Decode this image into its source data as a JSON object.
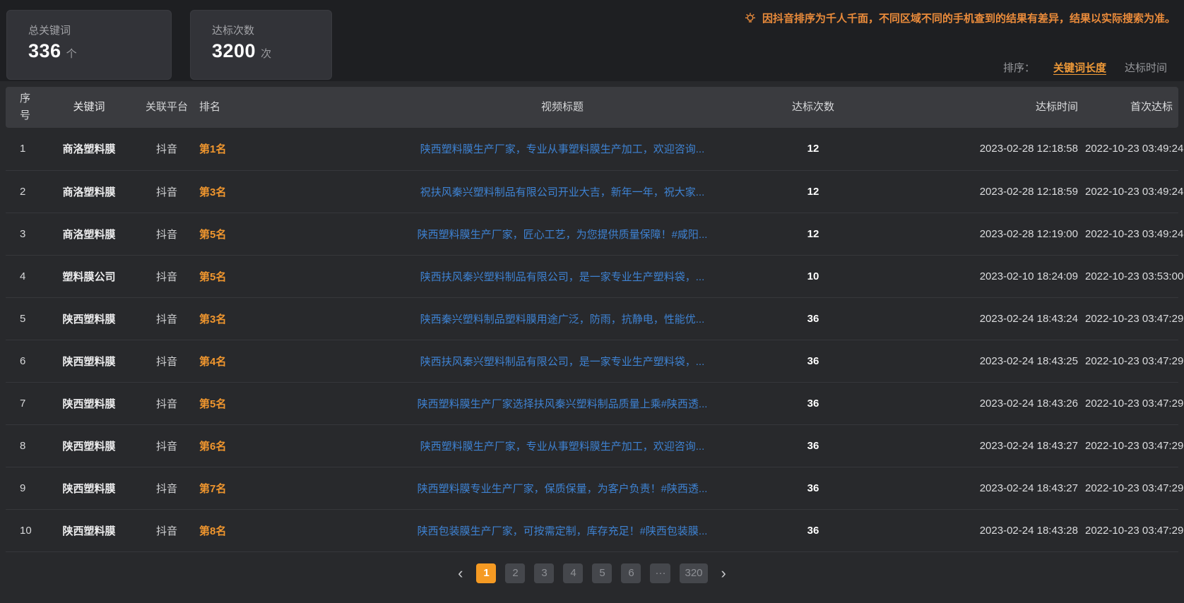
{
  "stats": [
    {
      "label": "总关键词",
      "value": "336",
      "unit": "个"
    },
    {
      "label": "达标次数",
      "value": "3200",
      "unit": "次"
    }
  ],
  "notice": {
    "icon": "bulb-icon",
    "text": "因抖音排序为千人千面，不同区域不同的手机查到的结果有差异，结果以实际搜索为准。",
    "color": "#ea8b3b"
  },
  "sort": {
    "label": "排序：",
    "options": [
      {
        "label": "关键词长度",
        "active": true
      },
      {
        "label": "达标时间",
        "active": false
      }
    ],
    "active_color": "#f09a38"
  },
  "table": {
    "headers": [
      "序号",
      "关键词",
      "关联平台",
      "排名",
      "视频标题",
      "达标次数",
      "达标时间",
      "首次达标"
    ],
    "rank_color": "#f0962e",
    "link_color": "#3e82d2",
    "rows": [
      {
        "index": "1",
        "keyword": "商洛塑料膜",
        "platform": "抖音",
        "rank": "第1名",
        "title": "陕西塑料膜生产厂家，专业从事塑料膜生产加工，欢迎咨询...",
        "count": "12",
        "reach_time": "2023-02-28 12:18:58",
        "first_reach": "2022-10-23 03:49:24"
      },
      {
        "index": "2",
        "keyword": "商洛塑料膜",
        "platform": "抖音",
        "rank": "第3名",
        "title": "祝扶风秦兴塑料制品有限公司开业大吉，新年一年，祝大家...",
        "count": "12",
        "reach_time": "2023-02-28 12:18:59",
        "first_reach": "2022-10-23 03:49:24"
      },
      {
        "index": "3",
        "keyword": "商洛塑料膜",
        "platform": "抖音",
        "rank": "第5名",
        "title": "陕西塑料膜生产厂家，匠心工艺，为您提供质量保障！#咸阳...",
        "count": "12",
        "reach_time": "2023-02-28 12:19:00",
        "first_reach": "2022-10-23 03:49:24"
      },
      {
        "index": "4",
        "keyword": "塑料膜公司",
        "platform": "抖音",
        "rank": "第5名",
        "title": "陕西扶风秦兴塑料制品有限公司，是一家专业生产塑料袋，...",
        "count": "10",
        "reach_time": "2023-02-10 18:24:09",
        "first_reach": "2022-10-23 03:53:00"
      },
      {
        "index": "5",
        "keyword": "陕西塑料膜",
        "platform": "抖音",
        "rank": "第3名",
        "title": "陕西秦兴塑料制品塑料膜用途广泛，防雨，抗静电，性能优...",
        "count": "36",
        "reach_time": "2023-02-24 18:43:24",
        "first_reach": "2022-10-23 03:47:29"
      },
      {
        "index": "6",
        "keyword": "陕西塑料膜",
        "platform": "抖音",
        "rank": "第4名",
        "title": "陕西扶风秦兴塑料制品有限公司，是一家专业生产塑料袋，...",
        "count": "36",
        "reach_time": "2023-02-24 18:43:25",
        "first_reach": "2022-10-23 03:47:29"
      },
      {
        "index": "7",
        "keyword": "陕西塑料膜",
        "platform": "抖音",
        "rank": "第5名",
        "title": "陕西塑料膜生产厂家选择扶风秦兴塑料制品质量上乘#陕西透...",
        "count": "36",
        "reach_time": "2023-02-24 18:43:26",
        "first_reach": "2022-10-23 03:47:29"
      },
      {
        "index": "8",
        "keyword": "陕西塑料膜",
        "platform": "抖音",
        "rank": "第6名",
        "title": "陕西塑料膜生产厂家，专业从事塑料膜生产加工，欢迎咨询...",
        "count": "36",
        "reach_time": "2023-02-24 18:43:27",
        "first_reach": "2022-10-23 03:47:29"
      },
      {
        "index": "9",
        "keyword": "陕西塑料膜",
        "platform": "抖音",
        "rank": "第7名",
        "title": "陕西塑料膜专业生产厂家，保质保量，为客户负责！#陕西透...",
        "count": "36",
        "reach_time": "2023-02-24 18:43:27",
        "first_reach": "2022-10-23 03:47:29"
      },
      {
        "index": "10",
        "keyword": "陕西塑料膜",
        "platform": "抖音",
        "rank": "第8名",
        "title": "陕西包装膜生产厂家，可按需定制，库存充足！#陕西包装膜...",
        "count": "36",
        "reach_time": "2023-02-24 18:43:28",
        "first_reach": "2022-10-23 03:47:29"
      }
    ]
  },
  "pagination": {
    "prev": "‹",
    "next": "›",
    "pages": [
      "1",
      "2",
      "3",
      "4",
      "5",
      "6",
      "···",
      "320"
    ],
    "active": "1",
    "active_color": "#f59a23"
  }
}
